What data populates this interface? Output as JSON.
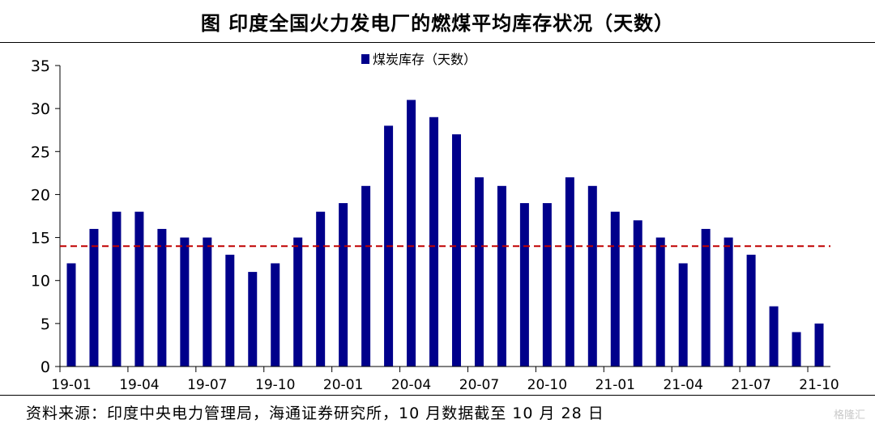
{
  "title": "图  印度全国火力发电厂的燃煤平均库存状况（天数）",
  "source": "资料来源：印度中央电力管理局，海通证券研究所，10 月数据截至 10 月 28 日",
  "watermark": "格隆汇",
  "colors": {
    "bar": "#00008b",
    "reference_line": "#c00000",
    "axis": "#000000"
  },
  "chart_data": {
    "type": "bar",
    "categories": [
      "19-01",
      "19-02",
      "19-03",
      "19-04",
      "19-05",
      "19-06",
      "19-07",
      "19-08",
      "19-09",
      "19-10",
      "19-11",
      "19-12",
      "20-01",
      "20-02",
      "20-03",
      "20-04",
      "20-05",
      "20-06",
      "20-07",
      "20-08",
      "20-09",
      "20-10",
      "20-11",
      "20-12",
      "21-01",
      "21-02",
      "21-03",
      "21-04",
      "21-05",
      "21-06",
      "21-07",
      "21-08",
      "21-09",
      "21-10"
    ],
    "series": [
      {
        "name": "煤炭库存（天数）",
        "values": [
          12,
          16,
          18,
          18,
          16,
          15,
          15,
          13,
          11,
          12,
          15,
          18,
          19,
          21,
          28,
          31,
          29,
          27,
          22,
          21,
          19,
          19,
          22,
          21,
          18,
          17,
          15,
          12,
          16,
          15,
          13,
          7,
          4,
          5
        ]
      }
    ],
    "x_tick_labels": [
      "19-01",
      "19-04",
      "19-07",
      "19-10",
      "20-01",
      "20-04",
      "20-07",
      "20-10",
      "21-01",
      "21-04",
      "21-07",
      "21-10"
    ],
    "reference_line": {
      "y": 14,
      "style": "dashed"
    },
    "ylim": [
      0,
      35
    ],
    "y_ticks": [
      0,
      5,
      10,
      15,
      20,
      25,
      30,
      35
    ],
    "xlabel": "",
    "ylabel": "",
    "legend_position": "top-center",
    "grid": false
  }
}
